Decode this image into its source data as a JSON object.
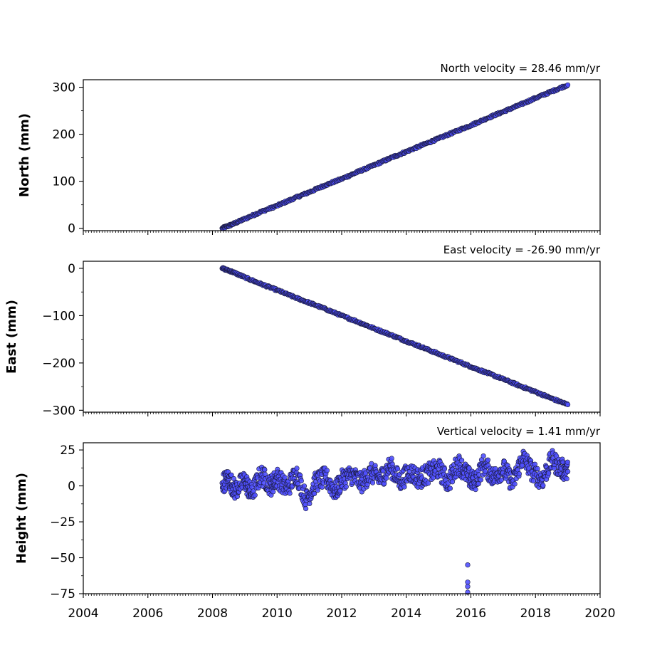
{
  "chart_data": [
    {
      "type": "scatter",
      "title": "North velocity = 28.46 mm/yr",
      "xlabel": "",
      "ylabel": "North (mm)",
      "xlim": [
        2004,
        2020
      ],
      "ylim": [
        -5,
        316
      ],
      "yticks": [
        0,
        100,
        200,
        300
      ],
      "ytick_labels": [
        "0",
        "100",
        "200",
        "300"
      ],
      "show_xtick_labels": false,
      "marker_color": "#5050ff",
      "marker_edge": "#1a1a3a",
      "series": [
        {
          "values": [
            [
              2008.3,
              0
            ],
            [
              2008.6,
              8
            ],
            [
              2009.0,
              20
            ],
            [
              2009.5,
              35
            ],
            [
              2010.0,
              48
            ],
            [
              2010.5,
              63
            ],
            [
              2011.0,
              77
            ],
            [
              2011.5,
              92
            ],
            [
              2012.0,
              105
            ],
            [
              2012.5,
              120
            ],
            [
              2013.0,
              134
            ],
            [
              2013.5,
              149
            ],
            [
              2014.0,
              163
            ],
            [
              2014.5,
              177
            ],
            [
              2015.0,
              191
            ],
            [
              2015.5,
              205
            ],
            [
              2016.0,
              219
            ],
            [
              2016.5,
              234
            ],
            [
              2017.0,
              248
            ],
            [
              2017.5,
              262
            ],
            [
              2018.0,
              277
            ],
            [
              2018.5,
              291
            ],
            [
              2019.0,
              305
            ]
          ]
        }
      ]
    },
    {
      "type": "scatter",
      "title": "East velocity = -26.90 mm/yr",
      "xlabel": "",
      "ylabel": "East (mm)",
      "xlim": [
        2004,
        2020
      ],
      "ylim": [
        -304,
        15
      ],
      "yticks": [
        0,
        -100,
        -200,
        -300
      ],
      "ytick_labels": [
        "0",
        "−100",
        "−200",
        "−300"
      ],
      "show_xtick_labels": false,
      "marker_color": "#5050ff",
      "marker_edge": "#1a1a3a",
      "series": [
        {
          "values": [
            [
              2008.3,
              0
            ],
            [
              2008.6,
              -7
            ],
            [
              2009.0,
              -19
            ],
            [
              2009.5,
              -33
            ],
            [
              2010.0,
              -46
            ],
            [
              2010.5,
              -60
            ],
            [
              2011.0,
              -73
            ],
            [
              2011.5,
              -86
            ],
            [
              2012.0,
              -100
            ],
            [
              2012.5,
              -113
            ],
            [
              2013.0,
              -127
            ],
            [
              2013.5,
              -140
            ],
            [
              2014.0,
              -154
            ],
            [
              2014.5,
              -167
            ],
            [
              2015.0,
              -181
            ],
            [
              2015.5,
              -194
            ],
            [
              2016.0,
              -208
            ],
            [
              2016.5,
              -221
            ],
            [
              2017.0,
              -234
            ],
            [
              2017.5,
              -248
            ],
            [
              2018.0,
              -261
            ],
            [
              2018.5,
              -275
            ],
            [
              2019.0,
              -288
            ]
          ]
        }
      ]
    },
    {
      "type": "scatter",
      "title": "Vertical velocity = 1.41 mm/yr",
      "xlabel": "",
      "ylabel": "Height (mm)",
      "xlim": [
        2004,
        2020
      ],
      "ylim": [
        -75,
        30
      ],
      "yticks": [
        25,
        0,
        -25,
        -50,
        -75
      ],
      "ytick_labels": [
        "25",
        "0",
        "−25",
        "−50",
        "−75"
      ],
      "show_xtick_labels": true,
      "xticks": [
        2004,
        2006,
        2008,
        2010,
        2012,
        2014,
        2016,
        2018,
        2020
      ],
      "xtick_labels": [
        "2004",
        "2006",
        "2008",
        "2010",
        "2012",
        "2014",
        "2016",
        "2018",
        "2020"
      ],
      "marker_color": "#5050ff",
      "marker_edge": "#1a1a3a",
      "series": [
        {
          "values": [
            [
              2008.3,
              2
            ],
            [
              2008.5,
              5
            ],
            [
              2008.7,
              -3
            ],
            [
              2009.0,
              4
            ],
            [
              2009.2,
              -6
            ],
            [
              2009.5,
              8
            ],
            [
              2009.8,
              0
            ],
            [
              2010.0,
              6
            ],
            [
              2010.3,
              -2
            ],
            [
              2010.6,
              9
            ],
            [
              2010.9,
              -10
            ],
            [
              2011.2,
              3
            ],
            [
              2011.5,
              6
            ],
            [
              2011.8,
              -4
            ],
            [
              2012.0,
              4
            ],
            [
              2012.3,
              8
            ],
            [
              2012.6,
              2
            ],
            [
              2012.9,
              9
            ],
            [
              2013.2,
              5
            ],
            [
              2013.5,
              14
            ],
            [
              2013.8,
              3
            ],
            [
              2014.1,
              10
            ],
            [
              2014.4,
              5
            ],
            [
              2014.7,
              9
            ],
            [
              2015.0,
              12
            ],
            [
              2015.3,
              2
            ],
            [
              2015.6,
              16
            ],
            [
              2015.9,
              7
            ],
            [
              2016.1,
              2
            ],
            [
              2016.4,
              15
            ],
            [
              2016.7,
              6
            ],
            [
              2017.0,
              12
            ],
            [
              2017.3,
              2
            ],
            [
              2017.6,
              20
            ],
            [
              2017.9,
              10
            ],
            [
              2018.2,
              4
            ],
            [
              2018.5,
              18
            ],
            [
              2018.8,
              12
            ],
            [
              2019.0,
              10
            ],
            [
              2015.9,
              -55
            ],
            [
              2015.9,
              -67
            ],
            [
              2015.9,
              -70
            ],
            [
              2015.9,
              -74
            ]
          ]
        }
      ]
    }
  ]
}
